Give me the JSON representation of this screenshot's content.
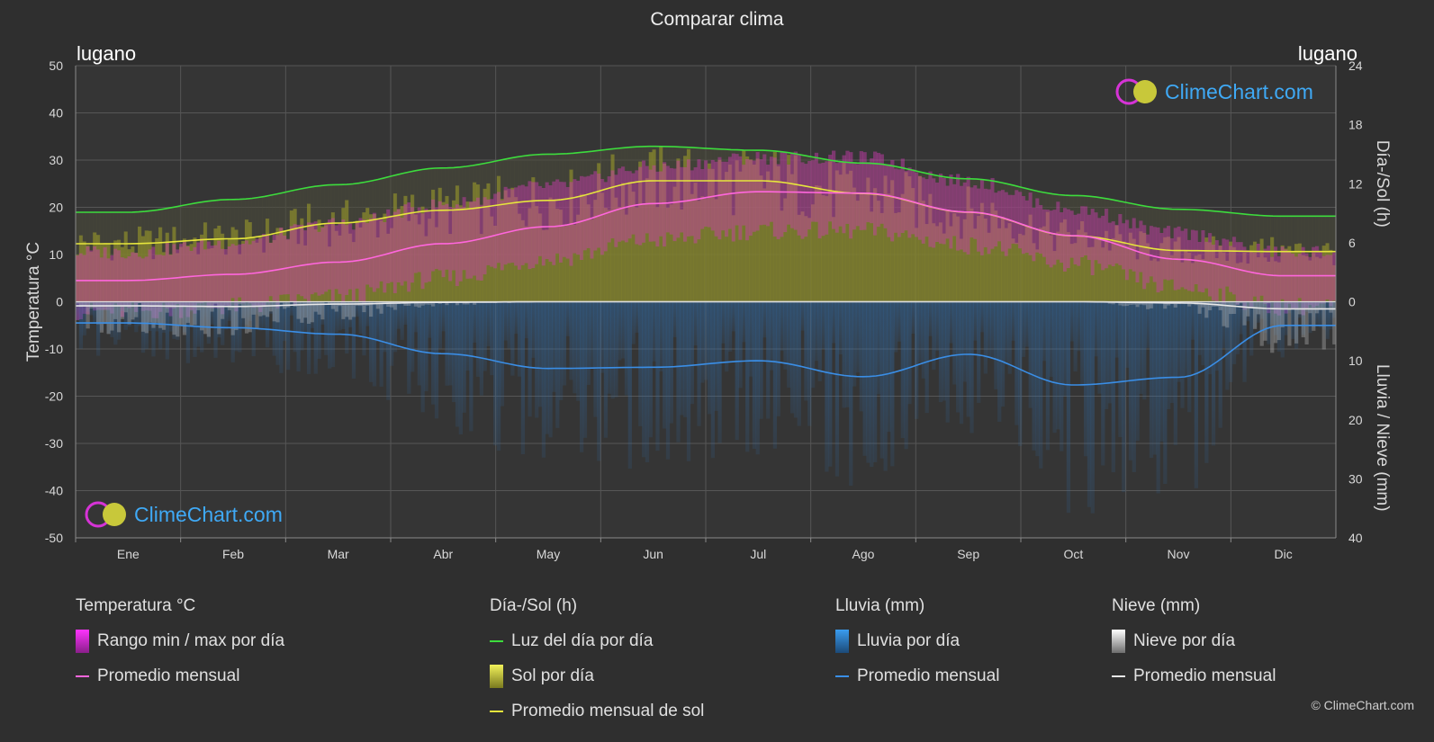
{
  "page": {
    "title": "Comparar clima",
    "city_left": "lugano",
    "city_right": "lugano",
    "copyright": "© ClimeChart.com",
    "logo_text": "ClimeChart.com"
  },
  "colors": {
    "background": "#2f2f2f",
    "daylight": "#3ddc3d",
    "sunshine_avg": "#e6e63c",
    "sunshine_fill": "#9a9a2a",
    "temp_avg": "#ff66dd",
    "temp_range": "#d13cb4",
    "rain": "#2f7fc9",
    "rain_avg": "#3a8ee6",
    "snow": "#bfbfbf",
    "snow_avg": "#e8e8e8",
    "brand": "#3fa9f5"
  },
  "chart_data": {
    "type": "line",
    "title": "Comparar clima",
    "categories": [
      "Ene",
      "Feb",
      "Mar",
      "Abr",
      "May",
      "Jun",
      "Jul",
      "Ago",
      "Sep",
      "Oct",
      "Nov",
      "Dic"
    ],
    "y_left": {
      "label": "Temperatura °C",
      "min": -50,
      "max": 50,
      "ticks": [
        50,
        40,
        30,
        20,
        10,
        0,
        -10,
        -20,
        -30,
        -40,
        -50
      ]
    },
    "y_right_top": {
      "label": "Día-/Sol (h)",
      "min": 0,
      "max": 24,
      "ticks": [
        24,
        18,
        12,
        6,
        0
      ]
    },
    "y_right_bottom": {
      "label": "Lluvia / Nieve (mm)",
      "min": 0,
      "max": 40,
      "ticks": [
        0,
        10,
        20,
        30,
        40
      ]
    },
    "grid": true,
    "series": [
      {
        "name": "Luz del día por día",
        "axis": "hours",
        "values": [
          9.1,
          10.4,
          11.9,
          13.6,
          15.0,
          15.8,
          15.4,
          14.1,
          12.5,
          10.8,
          9.4,
          8.7
        ]
      },
      {
        "name": "Promedio mensual de sol",
        "axis": "hours",
        "values": [
          5.9,
          6.4,
          8.0,
          9.3,
          10.3,
          12.3,
          12.3,
          11.0,
          9.1,
          6.7,
          5.2,
          5.1
        ]
      },
      {
        "name": "Promedio mensual",
        "kind": "temperature",
        "axis": "temperature",
        "values": [
          4.5,
          5.8,
          8.4,
          12.3,
          15.9,
          20.8,
          23.3,
          23.0,
          19.0,
          14.0,
          9.0,
          5.5
        ]
      },
      {
        "name": "Promedio mensual",
        "kind": "rain",
        "axis": "precip",
        "values": [
          3.6,
          4.4,
          5.5,
          8.8,
          11.3,
          11.1,
          10.0,
          12.7,
          8.9,
          14.1,
          12.8,
          4.0
        ]
      },
      {
        "name": "Promedio mensual",
        "kind": "snow",
        "axis": "precip",
        "values": [
          0.7,
          0.8,
          0.4,
          0.1,
          0.0,
          0.0,
          0.0,
          0.0,
          0.0,
          0.0,
          0.2,
          1.2
        ]
      }
    ],
    "temp_range": {
      "min": [
        -1,
        0,
        2,
        6,
        10,
        14,
        16,
        16,
        13,
        9,
        4,
        0
      ],
      "max": [
        9,
        11,
        15,
        19,
        23,
        27,
        29,
        29,
        24,
        18,
        13,
        9
      ]
    }
  },
  "legend": {
    "temperature": {
      "title": "Temperatura °C",
      "range_label": "Rango min / max por día",
      "avg_label": "Promedio mensual"
    },
    "sun": {
      "title": "Día-/Sol (h)",
      "daylight_label": "Luz del día por día",
      "sun_label": "Sol por día",
      "sun_avg_label": "Promedio mensual de sol"
    },
    "rain": {
      "title": "Lluvia (mm)",
      "rain_label": "Lluvia por día",
      "avg_label": "Promedio mensual"
    },
    "snow": {
      "title": "Nieve (mm)",
      "snow_label": "Nieve por día",
      "avg_label": "Promedio mensual"
    }
  }
}
